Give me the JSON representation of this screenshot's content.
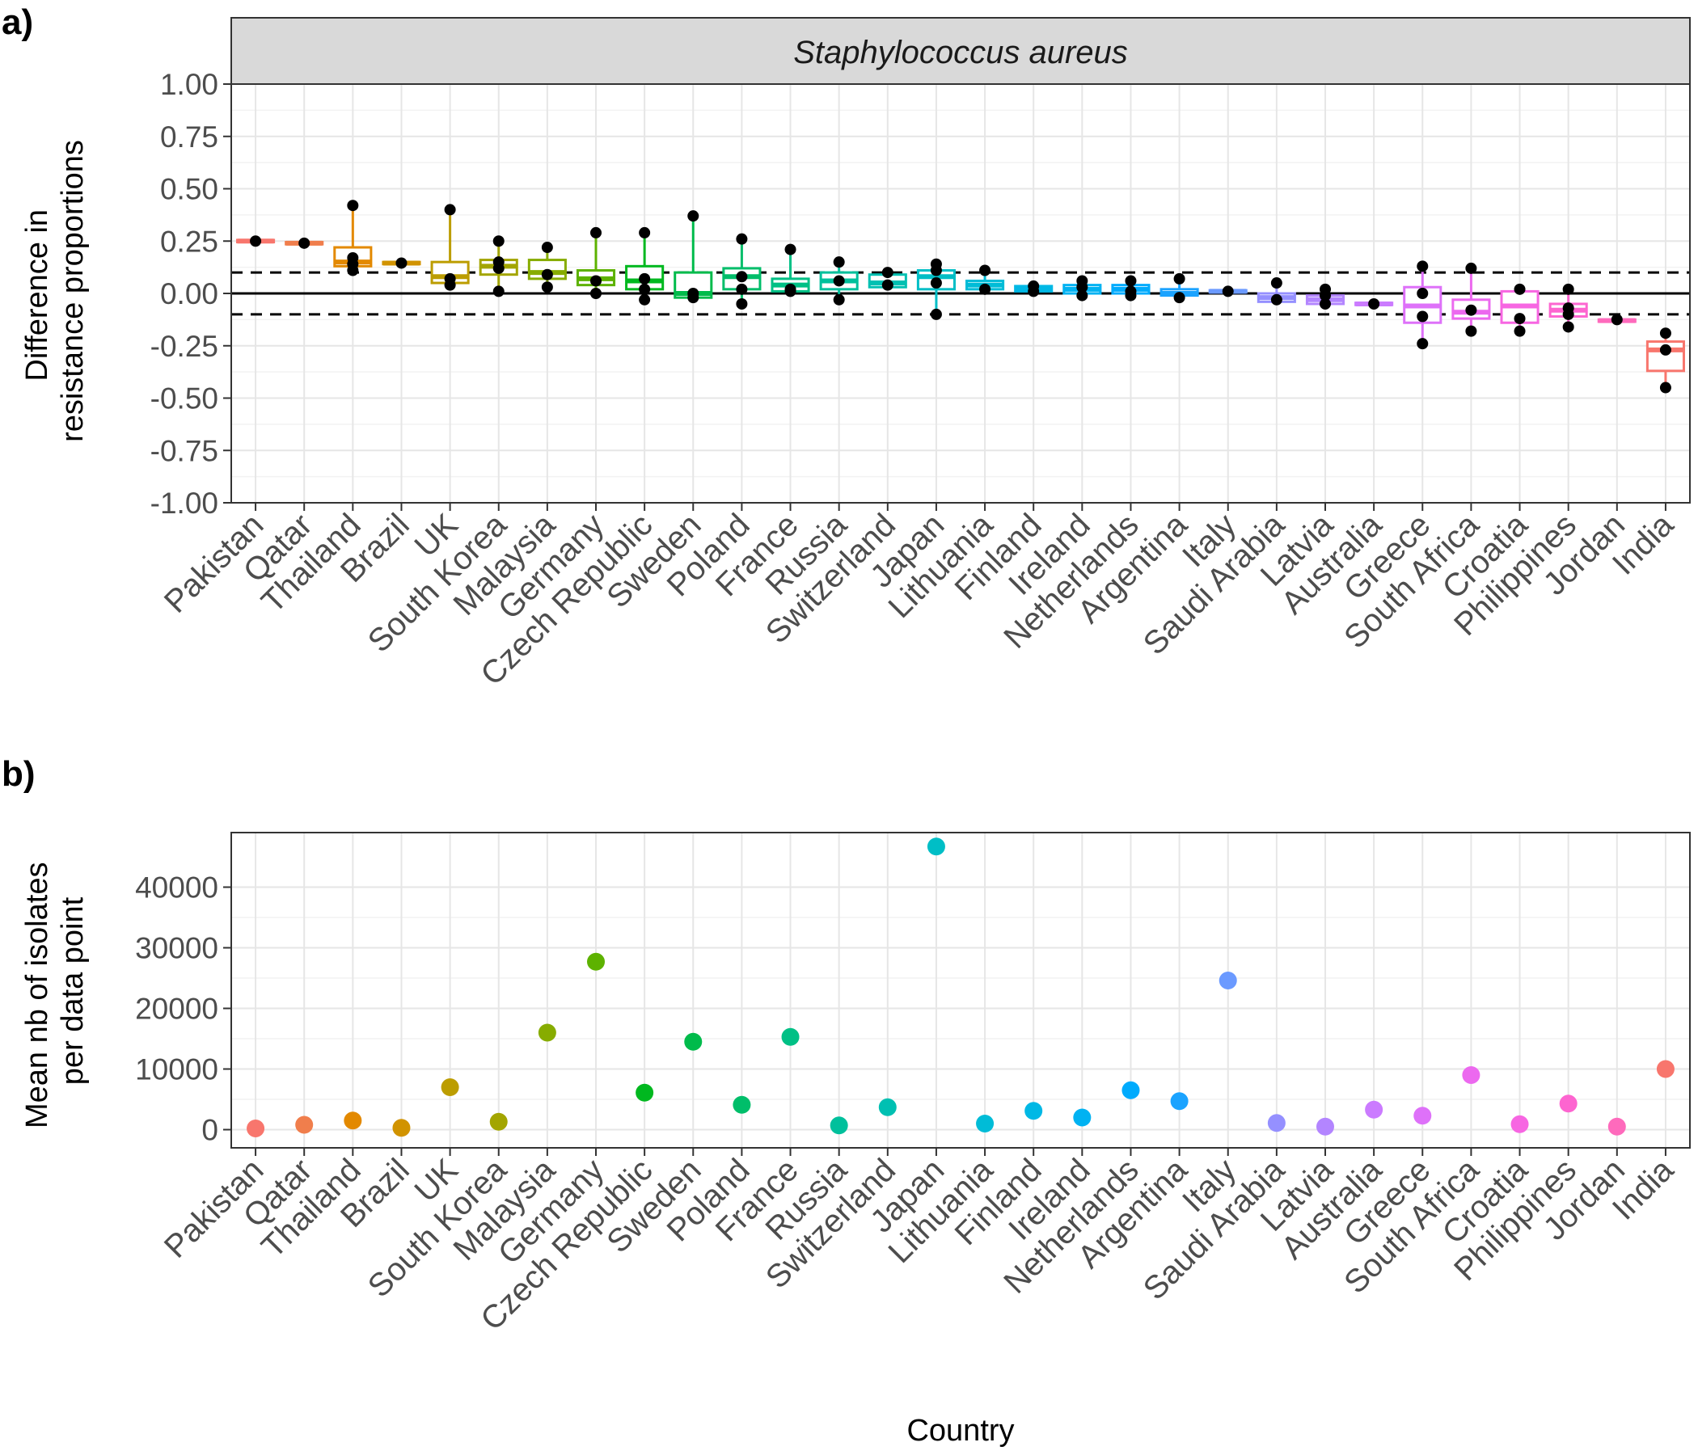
{
  "chart_data": [
    {
      "panel_tag": "a)",
      "type": "box",
      "facet_label": "Staphylococcus aureus",
      "xlabel": "",
      "ylabel_lines": [
        "Difference in",
        "resistance proportions"
      ],
      "ylim": [
        -1.0,
        1.0
      ],
      "y_ticks": [
        "1.00",
        "0.75",
        "0.50",
        "0.25",
        "0.00",
        "-0.25",
        "-0.50",
        "-0.75",
        "-1.00"
      ],
      "y_tick_values": [
        1.0,
        0.75,
        0.5,
        0.25,
        0.0,
        -0.25,
        -0.5,
        -0.75,
        -1.0
      ],
      "reference_lines": [
        {
          "y": 0.0,
          "style": "solid"
        },
        {
          "y": 0.1,
          "style": "dashed"
        },
        {
          "y": -0.1,
          "style": "dashed"
        }
      ],
      "grid": true,
      "categories": [
        "Pakistan",
        "Qatar",
        "Thailand",
        "Brazil",
        "UK",
        "South Korea",
        "Malaysia",
        "Germany",
        "Czech Republic",
        "Sweden",
        "Poland",
        "France",
        "Russia",
        "Switzerland",
        "Japan",
        "Lithuania",
        "Finland",
        "Ireland",
        "Netherlands",
        "Argentina",
        "Italy",
        "Saudi Arabia",
        "Latvia",
        "Australia",
        "Greece",
        "South Africa",
        "Croatia",
        "Philippines",
        "Jordan",
        "India"
      ],
      "colors": [
        "#F8766D",
        "#F07E4C",
        "#E38900",
        "#D19300",
        "#BC9D00",
        "#A3A500",
        "#87AC00",
        "#5DB200",
        "#00B81F",
        "#00BB4B",
        "#00BE6A",
        "#00C085",
        "#00C09C",
        "#00C0B2",
        "#00BEC6",
        "#00BCD7",
        "#00B8E5",
        "#00B2F2",
        "#00ABFD",
        "#1BA3FF",
        "#6B9AFF",
        "#9590FF",
        "#B385FF",
        "#CB7BFF",
        "#DE71F9",
        "#EC69EF",
        "#F766E2",
        "#FD65D0",
        "#FE6ABC",
        "#F8766D"
      ],
      "series": [
        {
          "category": "Pakistan",
          "q1": 0.245,
          "median": 0.25,
          "q3": 0.255,
          "whisker_low": 0.245,
          "whisker_high": 0.255,
          "points": [
            0.25
          ]
        },
        {
          "category": "Qatar",
          "q1": 0.235,
          "median": 0.24,
          "q3": 0.245,
          "whisker_low": 0.235,
          "whisker_high": 0.245,
          "points": [
            0.24
          ]
        },
        {
          "category": "Thailand",
          "q1": 0.13,
          "median": 0.15,
          "q3": 0.22,
          "whisker_low": 0.11,
          "whisker_high": 0.42,
          "points": [
            0.42,
            0.17,
            0.14,
            0.11
          ]
        },
        {
          "category": "Brazil",
          "q1": 0.14,
          "median": 0.145,
          "q3": 0.15,
          "whisker_low": 0.14,
          "whisker_high": 0.15,
          "points": [
            0.145
          ]
        },
        {
          "category": "UK",
          "q1": 0.05,
          "median": 0.08,
          "q3": 0.15,
          "whisker_low": 0.04,
          "whisker_high": 0.4,
          "points": [
            0.4,
            0.07,
            0.04
          ]
        },
        {
          "category": "South Korea",
          "q1": 0.09,
          "median": 0.13,
          "q3": 0.16,
          "whisker_low": 0.01,
          "whisker_high": 0.25,
          "points": [
            0.25,
            0.15,
            0.12,
            0.01
          ]
        },
        {
          "category": "Malaysia",
          "q1": 0.07,
          "median": 0.1,
          "q3": 0.16,
          "whisker_low": 0.03,
          "whisker_high": 0.22,
          "points": [
            0.22,
            0.09,
            0.03
          ]
        },
        {
          "category": "Germany",
          "q1": 0.04,
          "median": 0.07,
          "q3": 0.11,
          "whisker_low": 0.0,
          "whisker_high": 0.29,
          "points": [
            0.29,
            0.06,
            0.0
          ]
        },
        {
          "category": "Czech Republic",
          "q1": 0.02,
          "median": 0.06,
          "q3": 0.13,
          "whisker_low": -0.03,
          "whisker_high": 0.29,
          "points": [
            0.29,
            0.07,
            0.02,
            -0.03
          ]
        },
        {
          "category": "Sweden",
          "q1": -0.02,
          "median": 0.0,
          "q3": 0.1,
          "whisker_low": -0.03,
          "whisker_high": 0.37,
          "points": [
            0.37,
            0.0,
            -0.02
          ]
        },
        {
          "category": "Poland",
          "q1": 0.02,
          "median": 0.08,
          "q3": 0.12,
          "whisker_low": -0.05,
          "whisker_high": 0.26,
          "points": [
            0.26,
            0.08,
            0.02,
            -0.05
          ]
        },
        {
          "category": "France",
          "q1": 0.01,
          "median": 0.04,
          "q3": 0.07,
          "whisker_low": 0.0,
          "whisker_high": 0.21,
          "points": [
            0.21,
            0.02,
            0.01
          ]
        },
        {
          "category": "Russia",
          "q1": 0.02,
          "median": 0.06,
          "q3": 0.1,
          "whisker_low": -0.03,
          "whisker_high": 0.15,
          "points": [
            0.15,
            0.06,
            -0.03
          ]
        },
        {
          "category": "Switzerland",
          "q1": 0.03,
          "median": 0.05,
          "q3": 0.09,
          "whisker_low": 0.03,
          "whisker_high": 0.1,
          "points": [
            0.1,
            0.04
          ]
        },
        {
          "category": "Japan",
          "q1": 0.02,
          "median": 0.08,
          "q3": 0.11,
          "whisker_low": -0.1,
          "whisker_high": 0.14,
          "points": [
            0.14,
            0.11,
            0.05,
            -0.1
          ]
        },
        {
          "category": "Lithuania",
          "q1": 0.02,
          "median": 0.04,
          "q3": 0.06,
          "whisker_low": 0.02,
          "whisker_high": 0.11,
          "points": [
            0.11,
            0.02
          ]
        },
        {
          "category": "Finland",
          "q1": 0.01,
          "median": 0.025,
          "q3": 0.035,
          "whisker_low": 0.01,
          "whisker_high": 0.04,
          "points": [
            0.035,
            0.01
          ]
        },
        {
          "category": "Ireland",
          "q1": 0.0,
          "median": 0.02,
          "q3": 0.04,
          "whisker_low": -0.01,
          "whisker_high": 0.06,
          "points": [
            0.06,
            0.03,
            -0.01
          ]
        },
        {
          "category": "Netherlands",
          "q1": 0.0,
          "median": 0.02,
          "q3": 0.04,
          "whisker_low": -0.01,
          "whisker_high": 0.06,
          "points": [
            0.06,
            0.01,
            -0.01
          ]
        },
        {
          "category": "Argentina",
          "q1": -0.01,
          "median": 0.0,
          "q3": 0.02,
          "whisker_low": -0.02,
          "whisker_high": 0.07,
          "points": [
            0.07,
            -0.02
          ]
        },
        {
          "category": "Italy",
          "q1": 0.005,
          "median": 0.01,
          "q3": 0.015,
          "whisker_low": 0.005,
          "whisker_high": 0.015,
          "points": [
            0.01
          ]
        },
        {
          "category": "Saudi Arabia",
          "q1": -0.04,
          "median": -0.02,
          "q3": 0.0,
          "whisker_low": -0.04,
          "whisker_high": 0.05,
          "points": [
            0.05,
            -0.03
          ]
        },
        {
          "category": "Latvia",
          "q1": -0.05,
          "median": -0.03,
          "q3": -0.01,
          "whisker_low": -0.06,
          "whisker_high": 0.02,
          "points": [
            0.02,
            -0.01,
            -0.05
          ]
        },
        {
          "category": "Australia",
          "q1": -0.055,
          "median": -0.05,
          "q3": -0.045,
          "whisker_low": -0.055,
          "whisker_high": -0.045,
          "points": [
            -0.05
          ]
        },
        {
          "category": "Greece",
          "q1": -0.14,
          "median": -0.06,
          "q3": 0.03,
          "whisker_low": -0.24,
          "whisker_high": 0.13,
          "points": [
            0.13,
            0.0,
            -0.11,
            -0.24
          ]
        },
        {
          "category": "South Africa",
          "q1": -0.12,
          "median": -0.09,
          "q3": -0.03,
          "whisker_low": -0.18,
          "whisker_high": 0.12,
          "points": [
            0.12,
            -0.08,
            -0.18
          ]
        },
        {
          "category": "Croatia",
          "q1": -0.14,
          "median": -0.06,
          "q3": 0.01,
          "whisker_low": -0.18,
          "whisker_high": 0.02,
          "points": [
            0.02,
            -0.12,
            -0.18
          ]
        },
        {
          "category": "Philippines",
          "q1": -0.11,
          "median": -0.08,
          "q3": -0.05,
          "whisker_low": -0.17,
          "whisker_high": 0.02,
          "points": [
            0.02,
            -0.07,
            -0.1,
            -0.16
          ]
        },
        {
          "category": "Jordan",
          "q1": -0.135,
          "median": -0.13,
          "q3": -0.125,
          "whisker_low": -0.135,
          "whisker_high": -0.125,
          "points": [
            -0.125
          ]
        },
        {
          "category": "India",
          "q1": -0.37,
          "median": -0.27,
          "q3": -0.23,
          "whisker_low": -0.46,
          "whisker_high": -0.19,
          "points": [
            -0.19,
            -0.27,
            -0.45
          ]
        }
      ]
    },
    {
      "panel_tag": "b)",
      "type": "scatter",
      "xlabel": "Country",
      "ylabel_lines": [
        "Mean nb of isolates",
        "per data point"
      ],
      "ylim": [
        -3000,
        49000
      ],
      "y_ticks": [
        "40000",
        "30000",
        "20000",
        "10000",
        "0"
      ],
      "y_tick_values": [
        40000,
        30000,
        20000,
        10000,
        0
      ],
      "grid": true,
      "categories": [
        "Pakistan",
        "Qatar",
        "Thailand",
        "Brazil",
        "UK",
        "South Korea",
        "Malaysia",
        "Germany",
        "Czech Republic",
        "Sweden",
        "Poland",
        "France",
        "Russia",
        "Switzerland",
        "Japan",
        "Lithuania",
        "Finland",
        "Ireland",
        "Netherlands",
        "Argentina",
        "Italy",
        "Saudi Arabia",
        "Latvia",
        "Australia",
        "Greece",
        "South Africa",
        "Croatia",
        "Philippines",
        "Jordan",
        "India"
      ],
      "values": [
        200,
        800,
        1500,
        300,
        7000,
        1300,
        16000,
        27700,
        6100,
        14500,
        4100,
        15300,
        700,
        3700,
        46700,
        1000,
        3100,
        2000,
        6500,
        4700,
        24600,
        1100,
        500,
        3300,
        2300,
        9000,
        900,
        4300,
        500,
        10000
      ],
      "colors": [
        "#F8766D",
        "#F07E4C",
        "#E38900",
        "#D19300",
        "#BC9D00",
        "#A3A500",
        "#87AC00",
        "#5DB200",
        "#00B81F",
        "#00BB4B",
        "#00BE6A",
        "#00C085",
        "#00C09C",
        "#00C0B2",
        "#00BEC6",
        "#00BCD7",
        "#00B8E5",
        "#00B2F2",
        "#00ABFD",
        "#1BA3FF",
        "#6B9AFF",
        "#9590FF",
        "#B385FF",
        "#CB7BFF",
        "#DE71F9",
        "#EC69EF",
        "#F766E2",
        "#FD65D0",
        "#FE6ABC",
        "#F8766D"
      ]
    }
  ]
}
